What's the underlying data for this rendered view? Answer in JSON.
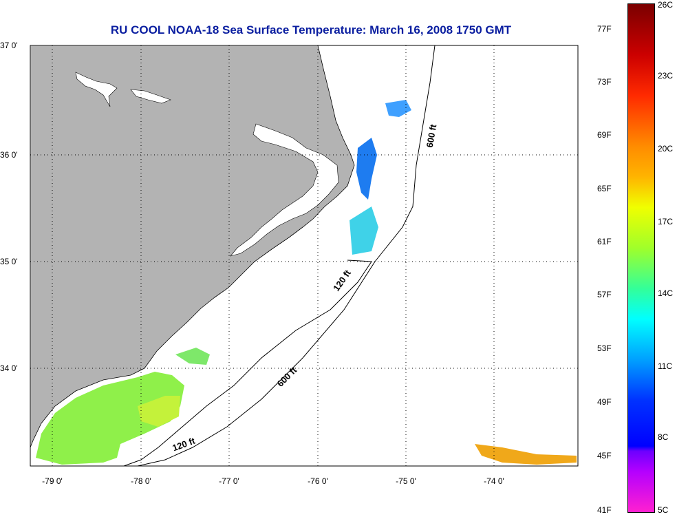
{
  "title": "RU COOL  NOAA-18  Sea Surface Temperature:  March 16, 2008 1750 GMT",
  "latitude_labels": [
    "37 0'",
    "36 0'",
    "35 0'",
    "34 0'"
  ],
  "longitude_labels": [
    "-79 0'",
    "-78 0'",
    "-77 0'",
    "-76 0'",
    "-75 0'",
    "-74 0'"
  ],
  "isobath_labels": [
    "600 ft",
    "120 ft",
    "600 ft",
    "120 ft"
  ],
  "colorbar": {
    "fahrenheit_labels": [
      "77F",
      "73F",
      "69F",
      "65F",
      "61F",
      "57F",
      "53F",
      "49F",
      "45F",
      "41F"
    ],
    "celsius_labels": [
      "26C",
      "23C",
      "20C",
      "17C",
      "14C",
      "11C",
      "8C",
      "5C"
    ]
  },
  "colors": {
    "land": "#b3b3b3",
    "ocean": "#ffffff",
    "title": "#0a1ea0",
    "grid": "#000000"
  }
}
